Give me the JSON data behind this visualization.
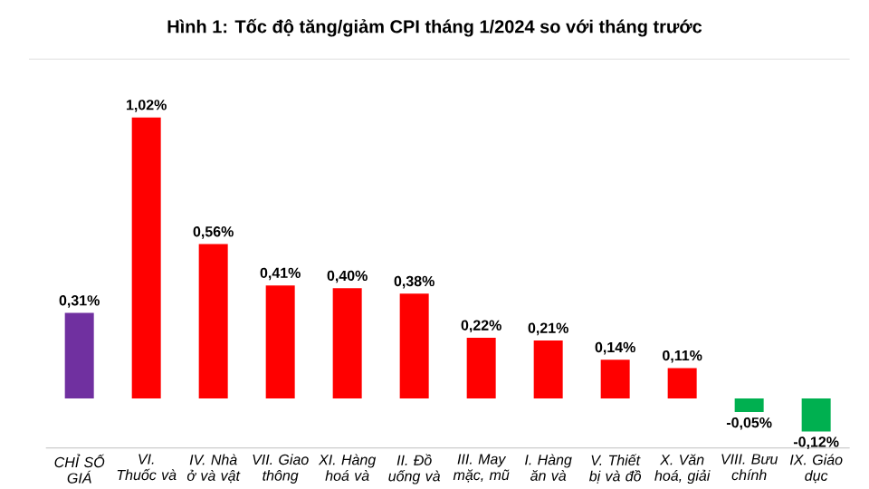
{
  "chart_data": {
    "type": "bar",
    "title": "Hình 1: Tốc độ tăng/giảm CPI tháng 1/2024 so với tháng trước",
    "categories": [
      "CHỈ SỐ GIÁ",
      "VI. Thuốc và",
      "IV. Nhà ở và vật",
      "VII. Giao thông",
      "XI. Hàng hoá và",
      "II. Đồ uống và",
      "III. May mặc, mũ",
      "I. Hàng ăn và",
      "V. Thiết bị và đồ",
      "X. Văn hoá, giải",
      "VIII. Bưu chính",
      "IX. Giáo dục"
    ],
    "values": [
      0.31,
      1.02,
      0.56,
      0.41,
      0.4,
      0.38,
      0.22,
      0.21,
      0.14,
      0.11,
      -0.05,
      -0.12
    ],
    "colors": [
      "#7030a0",
      "#ff0000",
      "#ff0000",
      "#ff0000",
      "#ff0000",
      "#ff0000",
      "#ff0000",
      "#ff0000",
      "#ff0000",
      "#ff0000",
      "#00b050",
      "#00b050"
    ],
    "value_labels": [
      "0,31%",
      "1,02%",
      "0,56%",
      "0,41%",
      "0,40%",
      "0,38%",
      "0,22%",
      "0,21%",
      "0,14%",
      "0,11%",
      "-0,05%",
      "-0,12%"
    ],
    "tick_labels": "x"
  }
}
